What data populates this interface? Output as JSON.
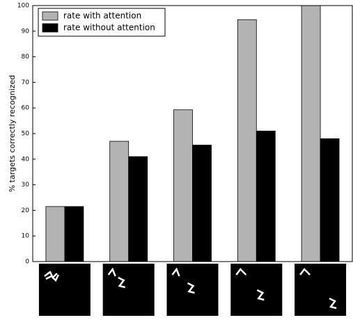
{
  "chart_data": {
    "type": "bar",
    "y_label": "% targets correctly recognized",
    "categories": [
      null,
      null,
      null,
      null,
      null
    ],
    "series": [
      {
        "name": "rate with attention",
        "color": "#b3b3b3",
        "values": [
          21.5,
          47,
          59.3,
          94.5,
          100
        ]
      },
      {
        "name": "rate without attention",
        "color": "#000000",
        "values": [
          21.5,
          41,
          45.5,
          51,
          48
        ]
      }
    ],
    "ylim": [
      0,
      100
    ],
    "yticks": [
      0,
      10,
      20,
      30,
      40,
      50,
      60,
      70,
      80,
      90,
      100
    ],
    "legend": "upper-left"
  }
}
